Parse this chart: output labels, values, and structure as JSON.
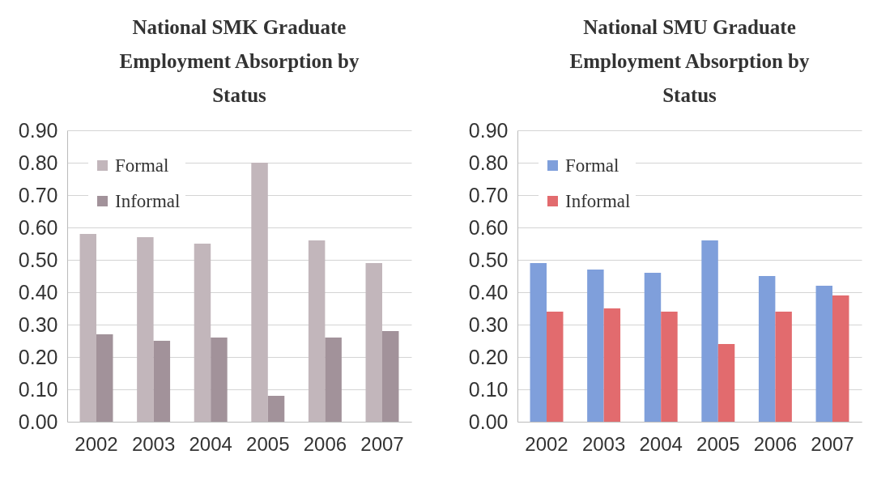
{
  "chart_data": [
    {
      "type": "bar",
      "title": "National SMK Graduate Employment Absorption by Status",
      "categories": [
        "2002",
        "2003",
        "2004",
        "2005",
        "2006",
        "2007"
      ],
      "series": [
        {
          "name": "Formal",
          "color": "#c2b6bb",
          "values": [
            0.58,
            0.57,
            0.55,
            0.8,
            0.56,
            0.49
          ]
        },
        {
          "name": "Informal",
          "color": "#a2929a",
          "values": [
            0.27,
            0.25,
            0.26,
            0.08,
            0.26,
            0.28
          ]
        }
      ],
      "ylim": [
        0,
        0.9
      ],
      "yticks": [
        {
          "value": 0,
          "label": "0.00"
        },
        {
          "value": 0.1,
          "label": "0.10"
        },
        {
          "value": 0.2,
          "label": "0.20"
        },
        {
          "value": 0.3,
          "label": "0.30"
        },
        {
          "value": 0.4,
          "label": "0.40"
        },
        {
          "value": 0.5,
          "label": "0.50"
        },
        {
          "value": 0.6,
          "label": "0.60"
        },
        {
          "value": 0.7,
          "label": "0.70"
        },
        {
          "value": 0.8,
          "label": "0.80"
        },
        {
          "value": 0.9,
          "label": "0.90"
        }
      ],
      "grid": "y",
      "legend": "top left"
    },
    {
      "type": "bar",
      "title": "National SMU Graduate Employment Absorption by Status",
      "categories": [
        "2002",
        "2003",
        "2004",
        "2005",
        "2006",
        "2007"
      ],
      "series": [
        {
          "name": "Formal",
          "color": "#7f9fdb",
          "values": [
            0.49,
            0.47,
            0.46,
            0.56,
            0.45,
            0.42
          ]
        },
        {
          "name": "Informal",
          "color": "#e26b6e",
          "values": [
            0.34,
            0.35,
            0.34,
            0.24,
            0.34,
            0.39
          ]
        }
      ],
      "ylim": [
        0,
        0.9
      ],
      "yticks": [
        {
          "value": 0,
          "label": "0.00"
        },
        {
          "value": 0.1,
          "label": "0.10"
        },
        {
          "value": 0.2,
          "label": "0.20"
        },
        {
          "value": 0.3,
          "label": "0.30"
        },
        {
          "value": 0.4,
          "label": "0.40"
        },
        {
          "value": 0.5,
          "label": "0.50"
        },
        {
          "value": 0.6,
          "label": "0.60"
        },
        {
          "value": 0.7,
          "label": "0.70"
        },
        {
          "value": 0.8,
          "label": "0.80"
        },
        {
          "value": 0.9,
          "label": "0.90"
        }
      ],
      "grid": "y",
      "legend": "top left"
    }
  ]
}
